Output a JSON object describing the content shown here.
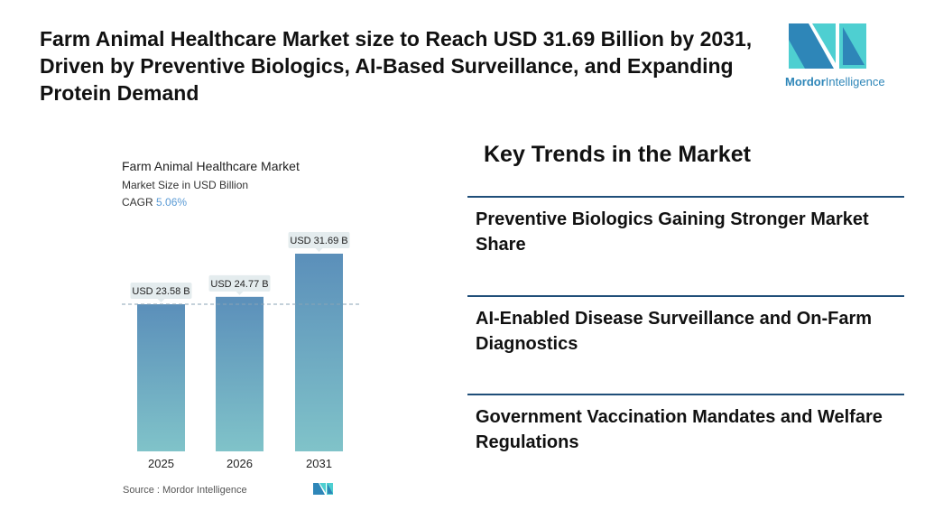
{
  "title": "Farm Animal Healthcare Market size to Reach USD 31.69 Billion by 2031, Driven by Preventive Biologics, AI-Based Surveillance, and Expanding Protein Demand",
  "logo": {
    "brand": "Mordor",
    "suffix": "Intelligence",
    "colors": [
      "#2e86b8",
      "#4ecfd1"
    ]
  },
  "chart_data": {
    "type": "bar",
    "title": "Farm Animal Healthcare Market",
    "subtitle": "Market Size in USD Billion",
    "cagr_label": "CAGR",
    "cagr_value": "5.06%",
    "categories": [
      "2025",
      "2026",
      "2031"
    ],
    "values": [
      23.58,
      24.77,
      31.69
    ],
    "data_labels": [
      "USD 23.58 B",
      "USD 24.77 B",
      "USD 31.69 B"
    ],
    "ylim": [
      0,
      32
    ],
    "grid": false,
    "bar_gradient": [
      "#5b8fba",
      "#80c3c9"
    ],
    "reference_line": "dashed at first bar value",
    "source": "Source :  Mordor Intelligence"
  },
  "key_trends": {
    "heading": "Key Trends in the Market",
    "items": [
      "Preventive Biologics Gaining Stronger Market Share",
      "AI-Enabled Disease Surveillance and On-Farm Diagnostics",
      "Government Vaccination Mandates and Welfare Regulations"
    ]
  }
}
